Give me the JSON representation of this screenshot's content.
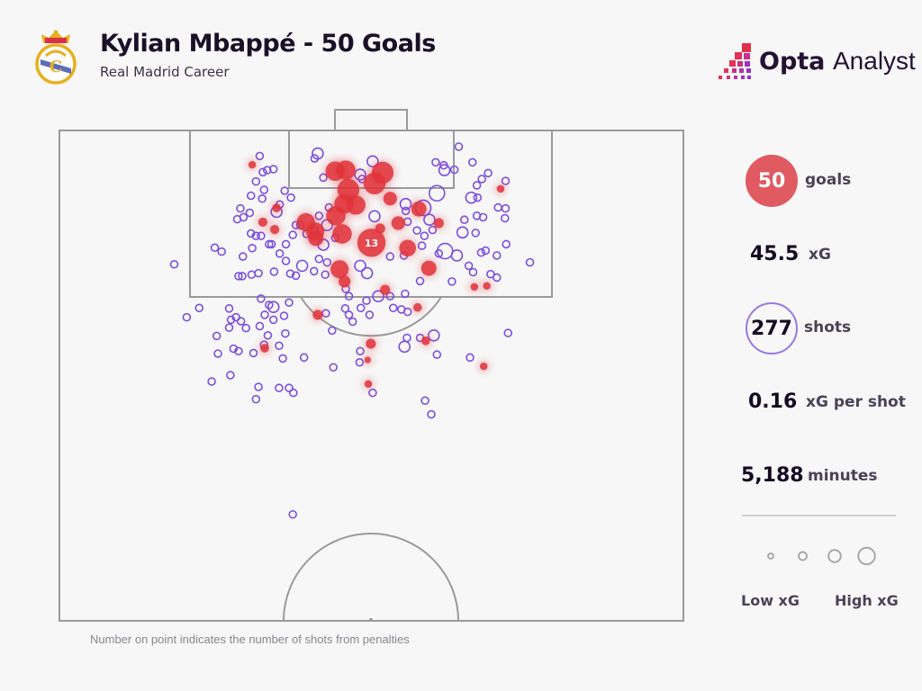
{
  "header": {
    "title": "Kylian Mbappé - 50 Goals",
    "subtitle": "Real Madrid Career",
    "club_crest": "real-madrid-crest",
    "brand_logo": {
      "bold": "Opta",
      "light": "Analyst"
    }
  },
  "stats": {
    "goals_value": "50",
    "goals_label": "goals",
    "xg_value": "45.5",
    "xg_label": "xG",
    "shots_value": "277",
    "shots_label": "shots",
    "xg_per_shot_value": "0.16",
    "xg_per_shot_label": "xG per shot",
    "minutes_value": "5,188",
    "minutes_label": "minutes"
  },
  "legend": {
    "low": "Low xG",
    "high": "High xG",
    "sizes_xg": [
      0.03,
      0.1,
      0.25,
      0.45
    ]
  },
  "footnote": "Number on point indicates the number of shots from penalties",
  "colors": {
    "goal": "#e0333a",
    "shot": "#7a4fe0",
    "pitch_line": "#9a9a9a",
    "goal_badge": "#e05a62"
  },
  "chart_data": {
    "type": "scatter",
    "title": "Kylian Mbappé - 50 Goals",
    "coordinate_system": "half pitch; x = % across width (0 left, 100 right), y = % of half-length from goal line",
    "xlim": [
      0,
      100
    ],
    "ylim": [
      0,
      100
    ],
    "series": [
      {
        "name": "shots (no goal)",
        "points": [
          [
            32.1,
            5.2,
            0.04
          ],
          [
            41.4,
            4.7,
            0.12
          ],
          [
            40.9,
            5.7,
            0.04
          ],
          [
            34.3,
            7.9,
            0.04
          ],
          [
            33.3,
            8.1,
            0.04
          ],
          [
            32.6,
            8.5,
            0.04
          ],
          [
            31.5,
            10.4,
            0.04
          ],
          [
            32.8,
            12.1,
            0.04
          ],
          [
            30.7,
            13.3,
            0.04
          ],
          [
            32.5,
            13.9,
            0.04
          ],
          [
            36.1,
            12.3,
            0.04
          ],
          [
            37.1,
            13.7,
            0.04
          ],
          [
            35.3,
            15.1,
            0.04
          ],
          [
            34.8,
            16.6,
            0.12
          ],
          [
            29.0,
            15.9,
            0.04
          ],
          [
            28.5,
            18.1,
            0.04
          ],
          [
            29.5,
            17.7,
            0.04
          ],
          [
            30.5,
            16.8,
            0.04
          ],
          [
            42.3,
            9.6,
            0.04
          ],
          [
            48.2,
            9.0,
            0.12
          ],
          [
            50.2,
            6.3,
            0.12
          ],
          [
            48.5,
            9.9,
            0.04
          ],
          [
            60.3,
            6.5,
            0.04
          ],
          [
            61.6,
            7.1,
            0.04
          ],
          [
            61.7,
            8.1,
            0.12
          ],
          [
            63.3,
            8.0,
            0.04
          ],
          [
            64.0,
            3.3,
            0.04
          ],
          [
            66.2,
            6.5,
            0.04
          ],
          [
            60.5,
            12.8,
            0.25
          ],
          [
            68.7,
            8.7,
            0.04
          ],
          [
            67.7,
            9.9,
            0.04
          ],
          [
            66.9,
            11.2,
            0.04
          ],
          [
            66.0,
            13.7,
            0.12
          ],
          [
            67.0,
            13.7,
            0.04
          ],
          [
            71.5,
            10.3,
            0.04
          ],
          [
            70.3,
            15.7,
            0.04
          ],
          [
            71.5,
            15.9,
            0.04
          ],
          [
            71.4,
            17.9,
            0.04
          ],
          [
            66.9,
            17.4,
            0.04
          ],
          [
            67.9,
            17.7,
            0.04
          ],
          [
            64.9,
            18.2,
            0.04
          ],
          [
            64.6,
            20.8,
            0.12
          ],
          [
            66.7,
            20.9,
            0.04
          ],
          [
            71.6,
            23.2,
            0.04
          ],
          [
            67.6,
            24.9,
            0.04
          ],
          [
            68.3,
            24.5,
            0.04
          ],
          [
            70.1,
            25.5,
            0.04
          ],
          [
            75.4,
            26.9,
            0.04
          ],
          [
            63.7,
            25.5,
            0.12
          ],
          [
            61.8,
            24.6,
            0.25
          ],
          [
            60.8,
            25.1,
            0.04
          ],
          [
            58.1,
            23.5,
            0.04
          ],
          [
            58.5,
            21.5,
            0.04
          ],
          [
            57.3,
            20.4,
            0.04
          ],
          [
            59.8,
            20.3,
            0.04
          ],
          [
            59.3,
            18.2,
            0.12
          ],
          [
            58.3,
            15.8,
            0.25
          ],
          [
            55.8,
            18.6,
            0.04
          ],
          [
            55.5,
            15.0,
            0.12
          ],
          [
            55.5,
            16.4,
            0.04
          ],
          [
            50.5,
            17.5,
            0.12
          ],
          [
            42.9,
            19.3,
            0.12
          ],
          [
            43.2,
            15.7,
            0.04
          ],
          [
            41.6,
            17.4,
            0.04
          ],
          [
            44.2,
            21.9,
            0.04
          ],
          [
            42.3,
            23.3,
            0.12
          ],
          [
            40.9,
            20.4,
            0.04
          ],
          [
            39.6,
            21.1,
            0.04
          ],
          [
            38.6,
            19.3,
            0.04
          ],
          [
            37.9,
            19.3,
            0.04
          ],
          [
            37.4,
            21.3,
            0.04
          ],
          [
            36.3,
            23.2,
            0.04
          ],
          [
            34.0,
            23.2,
            0.04
          ],
          [
            35.3,
            25.1,
            0.04
          ],
          [
            36.3,
            26.6,
            0.04
          ],
          [
            38.9,
            27.6,
            0.12
          ],
          [
            41.6,
            26.2,
            0.04
          ],
          [
            42.9,
            26.9,
            0.04
          ],
          [
            48.2,
            27.6,
            0.12
          ],
          [
            49.3,
            29.1,
            0.12
          ],
          [
            53.0,
            25.7,
            0.04
          ],
          [
            55.2,
            25.5,
            0.04
          ],
          [
            42.6,
            29.4,
            0.04
          ],
          [
            40.8,
            28.7,
            0.04
          ],
          [
            37.9,
            29.6,
            0.04
          ],
          [
            37.0,
            29.2,
            0.04
          ],
          [
            34.4,
            28.8,
            0.04
          ],
          [
            31.9,
            29.1,
            0.04
          ],
          [
            30.8,
            29.4,
            0.04
          ],
          [
            29.3,
            29.7,
            0.04
          ],
          [
            28.7,
            29.7,
            0.04
          ],
          [
            30.9,
            24.0,
            0.04
          ],
          [
            29.4,
            25.7,
            0.04
          ],
          [
            30.7,
            21.0,
            0.04
          ],
          [
            31.5,
            21.5,
            0.04
          ],
          [
            32.3,
            21.5,
            0.04
          ],
          [
            33.6,
            23.2,
            0.04
          ],
          [
            24.9,
            23.9,
            0.04
          ],
          [
            26.0,
            24.7,
            0.04
          ],
          [
            18.4,
            27.3,
            0.04
          ],
          [
            57.8,
            30.7,
            0.04
          ],
          [
            62.9,
            30.8,
            0.04
          ],
          [
            66.3,
            28.9,
            0.04
          ],
          [
            65.6,
            27.6,
            0.04
          ],
          [
            69.1,
            29.3,
            0.04
          ],
          [
            70.1,
            30.0,
            0.04
          ],
          [
            45.9,
            32.3,
            0.04
          ],
          [
            46.4,
            33.8,
            0.04
          ],
          [
            49.2,
            34.7,
            0.04
          ],
          [
            51.1,
            33.8,
            0.12
          ],
          [
            53.0,
            33.8,
            0.04
          ],
          [
            55.4,
            33.3,
            0.04
          ],
          [
            53.5,
            36.2,
            0.04
          ],
          [
            54.8,
            36.5,
            0.04
          ],
          [
            55.8,
            37.0,
            0.04
          ],
          [
            48.3,
            36.2,
            0.04
          ],
          [
            49.7,
            37.6,
            0.04
          ],
          [
            47.0,
            39.0,
            0.04
          ],
          [
            46.4,
            37.6,
            0.04
          ],
          [
            45.8,
            36.3,
            0.04
          ],
          [
            42.7,
            37.3,
            0.04
          ],
          [
            43.7,
            40.8,
            0.04
          ],
          [
            36.8,
            35.1,
            0.04
          ],
          [
            34.3,
            36.0,
            0.12
          ],
          [
            34.3,
            38.6,
            0.04
          ],
          [
            36.0,
            37.8,
            0.04
          ],
          [
            33.6,
            35.6,
            0.04
          ],
          [
            32.3,
            34.3,
            0.04
          ],
          [
            32.9,
            37.6,
            0.04
          ],
          [
            32.1,
            39.9,
            0.04
          ],
          [
            33.4,
            41.8,
            0.04
          ],
          [
            36.2,
            41.4,
            0.04
          ],
          [
            35.2,
            43.9,
            0.04
          ],
          [
            35.8,
            46.5,
            0.04
          ],
          [
            39.2,
            46.3,
            0.04
          ],
          [
            43.9,
            48.3,
            0.04
          ],
          [
            48.2,
            45.0,
            0.04
          ],
          [
            48.1,
            47.3,
            0.04
          ],
          [
            50.2,
            53.5,
            0.04
          ],
          [
            55.7,
            42.3,
            0.04
          ],
          [
            57.8,
            42.3,
            0.04
          ],
          [
            60.0,
            41.8,
            0.12
          ],
          [
            55.3,
            44.1,
            0.12
          ],
          [
            60.5,
            45.7,
            0.04
          ],
          [
            65.8,
            46.3,
            0.04
          ],
          [
            71.9,
            41.3,
            0.04
          ],
          [
            58.6,
            55.1,
            0.04
          ],
          [
            59.6,
            57.9,
            0.04
          ],
          [
            27.2,
            36.3,
            0.04
          ],
          [
            22.4,
            36.2,
            0.04
          ],
          [
            20.4,
            38.1,
            0.04
          ],
          [
            27.5,
            38.6,
            0.04
          ],
          [
            28.3,
            38.1,
            0.04
          ],
          [
            29.1,
            38.9,
            0.04
          ],
          [
            27.2,
            40.2,
            0.04
          ],
          [
            29.9,
            40.3,
            0.04
          ],
          [
            25.2,
            41.9,
            0.04
          ],
          [
            27.9,
            44.5,
            0.04
          ],
          [
            28.7,
            45.0,
            0.04
          ],
          [
            25.4,
            45.5,
            0.04
          ],
          [
            31.1,
            45.4,
            0.04
          ],
          [
            32.8,
            43.7,
            0.04
          ],
          [
            27.4,
            49.9,
            0.04
          ],
          [
            24.4,
            51.2,
            0.04
          ],
          [
            31.9,
            52.3,
            0.04
          ],
          [
            35.2,
            52.5,
            0.04
          ],
          [
            36.8,
            52.5,
            0.04
          ],
          [
            37.5,
            53.5,
            0.04
          ],
          [
            31.5,
            54.8,
            0.04
          ],
          [
            37.4,
            78.3,
            0.04
          ]
        ]
      },
      {
        "name": "goals",
        "points": [
          [
            30.9,
            7.0,
            0.05
          ],
          [
            44.2,
            8.3,
            0.4
          ],
          [
            45.9,
            8.1,
            0.4
          ],
          [
            51.8,
            8.6,
            0.5
          ],
          [
            46.3,
            12.1,
            0.5
          ],
          [
            50.5,
            10.8,
            0.5
          ],
          [
            53.0,
            13.9,
            0.2
          ],
          [
            45.6,
            15.0,
            0.4
          ],
          [
            47.5,
            15.2,
            0.4
          ],
          [
            44.3,
            17.4,
            0.4
          ],
          [
            57.6,
            16.0,
            0.25
          ],
          [
            34.8,
            15.8,
            0.07
          ],
          [
            32.6,
            18.7,
            0.08
          ],
          [
            34.5,
            20.2,
            0.08
          ],
          [
            39.5,
            18.7,
            0.35
          ],
          [
            41.0,
            20.6,
            0.35
          ],
          [
            41.1,
            22.0,
            0.25
          ],
          [
            45.3,
            21.1,
            0.4
          ],
          [
            51.4,
            20.0,
            0.1
          ],
          [
            54.3,
            18.9,
            0.2
          ],
          [
            60.8,
            18.9,
            0.1
          ],
          [
            55.8,
            24.0,
            0.3
          ],
          [
            44.9,
            28.3,
            0.35
          ],
          [
            59.2,
            28.1,
            0.25
          ],
          [
            45.7,
            30.8,
            0.15
          ],
          [
            52.2,
            32.5,
            0.1
          ],
          [
            66.5,
            31.9,
            0.05
          ],
          [
            68.5,
            31.7,
            0.05
          ],
          [
            70.7,
            11.9,
            0.05
          ],
          [
            41.4,
            37.6,
            0.1
          ],
          [
            57.4,
            36.1,
            0.07
          ],
          [
            49.9,
            43.5,
            0.1
          ],
          [
            58.7,
            42.9,
            0.07
          ],
          [
            32.9,
            44.4,
            0.07
          ],
          [
            49.4,
            46.8,
            0.03
          ],
          [
            68.0,
            48.1,
            0.05
          ],
          [
            49.5,
            51.7,
            0.05
          ]
        ]
      },
      {
        "name": "penalty goals",
        "points": [
          [
            50.0,
            22.9,
            0.79
          ]
        ],
        "label": "13"
      }
    ]
  }
}
